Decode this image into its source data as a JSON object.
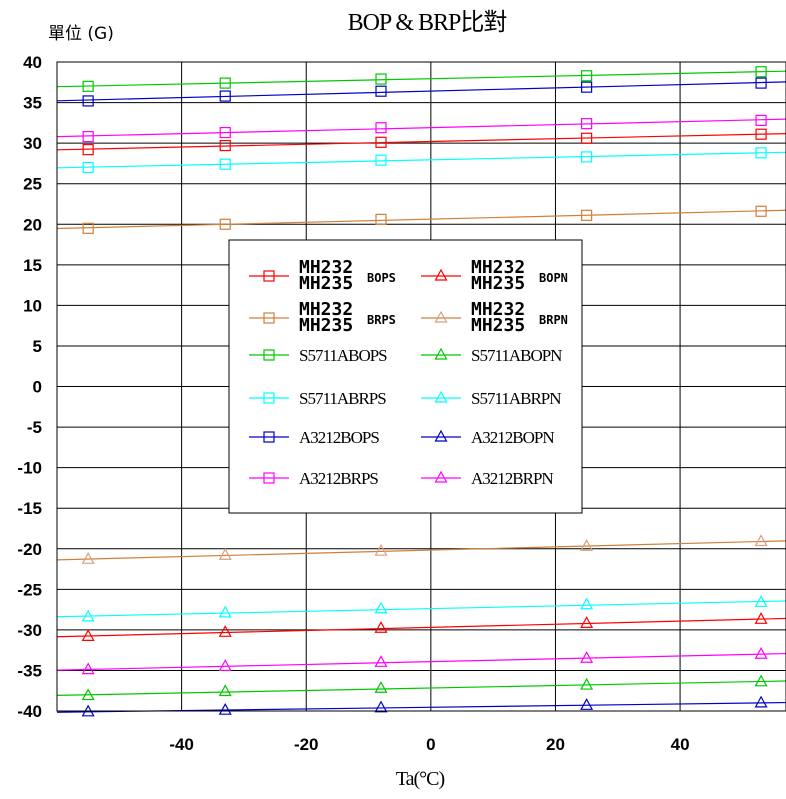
{
  "chart_data": {
    "type": "line",
    "title": "BOP & BRP比對",
    "ylabel": "單位 (G)",
    "xlabel": "Ta(°C)",
    "xlim": [
      -60,
      57
    ],
    "ylim": [
      -40,
      40
    ],
    "x_ticks": [
      -40,
      -20,
      0,
      20,
      40
    ],
    "y_ticks": [
      40,
      35,
      30,
      25,
      20,
      15,
      10,
      5,
      0,
      -5,
      -10,
      -15,
      -20,
      -25,
      -30,
      -35,
      -40
    ],
    "x_tick_labels": [
      "-40",
      "-20",
      "0",
      "20",
      "40"
    ],
    "y_tick_labels": [
      "40",
      "35",
      "30",
      "25",
      "20",
      "15",
      "10",
      "5",
      "0",
      "-5",
      "-10",
      "-15",
      "-20",
      "-25",
      "-30",
      "-35",
      "-40"
    ],
    "grid": true,
    "legend_position": "center-left",
    "marker_x": [
      -55,
      -33,
      -8,
      25,
      53
    ],
    "series": [
      {
        "name": "MH232/MH235 BOPS",
        "group": [
          "MH232",
          "MH235"
        ],
        "suffix": "BOPS",
        "color": "#ff0000",
        "marker": "square",
        "values": [
          29.2,
          29.7,
          30.1,
          30.6,
          31.1
        ]
      },
      {
        "name": "MH232/MH235 BOPN",
        "group": [
          "MH232",
          "MH235"
        ],
        "suffix": "BOPN",
        "color": "#ff0000",
        "marker": "triangle",
        "values": [
          -30.8,
          -30.3,
          -29.8,
          -29.2,
          -28.7
        ]
      },
      {
        "name": "MH232/MH235 BRPS",
        "group": [
          "MH232",
          "MH235"
        ],
        "suffix": "BRPS",
        "color": "#d0803a",
        "marker": "square",
        "values": [
          19.5,
          20.0,
          20.6,
          21.1,
          21.6
        ]
      },
      {
        "name": "MH232/MH235 BRPN",
        "group": [
          "MH232",
          "MH235"
        ],
        "suffix": "BRPN",
        "color": "#d8a080",
        "line_color": "#d0803a",
        "marker": "triangle",
        "values": [
          -21.3,
          -20.8,
          -20.3,
          -19.7,
          -19.1
        ]
      },
      {
        "name": "S5711ABOPS",
        "color": "#00c800",
        "marker": "square",
        "values": [
          37.0,
          37.4,
          37.9,
          38.3,
          38.8
        ]
      },
      {
        "name": "S5711ABOPN",
        "color": "#00c800",
        "marker": "triangle",
        "values": [
          -38.1,
          -37.6,
          -37.2,
          -36.8,
          -36.4
        ]
      },
      {
        "name": "S5711ABRPS",
        "color": "#00ffff",
        "marker": "square",
        "values": [
          27.0,
          27.4,
          27.9,
          28.3,
          28.8
        ]
      },
      {
        "name": "S5711ABRPN",
        "color": "#00ffff",
        "marker": "triangle",
        "values": [
          -28.4,
          -27.9,
          -27.4,
          -26.9,
          -26.6
        ]
      },
      {
        "name": "A3212BOPS",
        "color": "#0000c8",
        "marker": "square",
        "values": [
          35.2,
          35.8,
          36.4,
          36.9,
          37.4
        ]
      },
      {
        "name": "A3212BOPN",
        "color": "#0000c8",
        "marker": "triangle",
        "values": [
          -40.1,
          -39.9,
          -39.6,
          -39.3,
          -39.0
        ]
      },
      {
        "name": "A3212BRPS",
        "color": "#ff00ff",
        "marker": "square",
        "values": [
          30.8,
          31.3,
          31.9,
          32.4,
          32.8
        ]
      },
      {
        "name": "A3212BRPN",
        "color": "#ff00ff",
        "marker": "triangle",
        "values": [
          -34.9,
          -34.5,
          -34.0,
          -33.5,
          -33.0
        ]
      }
    ]
  }
}
